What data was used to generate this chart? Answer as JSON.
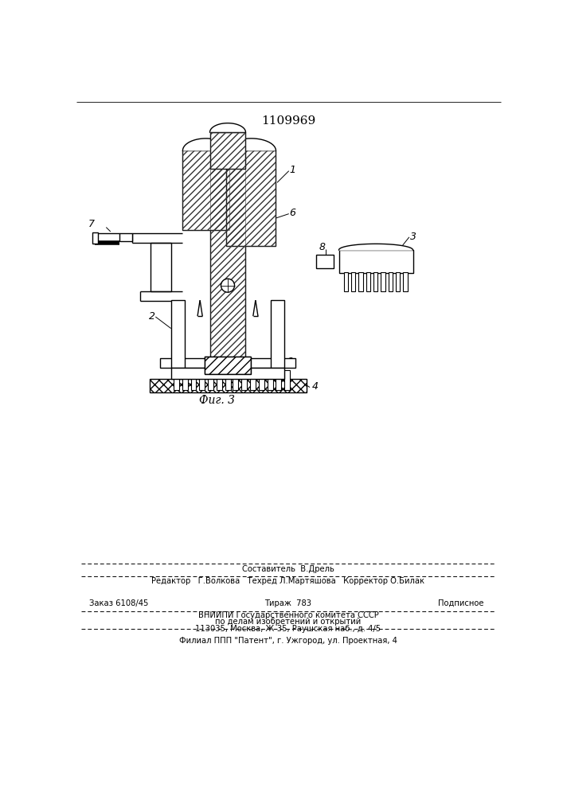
{
  "patent_number": "1109969",
  "fig_label": "Фиг. 3",
  "bg_color": "#ffffff"
}
